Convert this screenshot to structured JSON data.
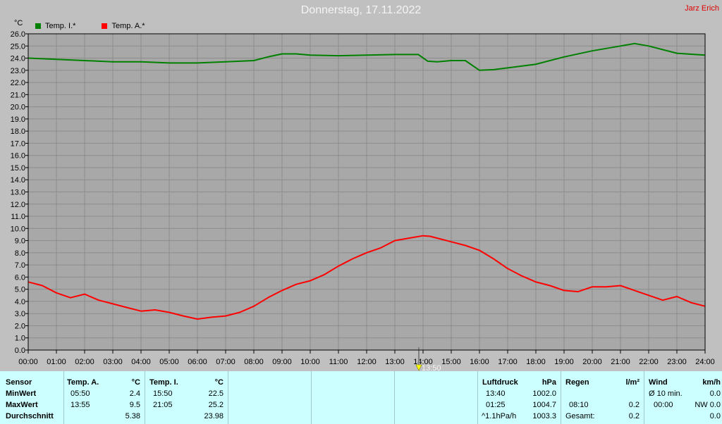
{
  "title": "Donnerstag, 17.11.2022",
  "author": "Jarz Erich",
  "cursor_label": "13:50",
  "colors": {
    "indoor": "#008000",
    "outdoor": "#ff0000",
    "title": "#f4f4f4",
    "author": "#e00000",
    "table_bg": "#ccffff"
  },
  "table": {
    "sensor": {
      "header": "Sensor",
      "rows": [
        "MinWert",
        "MaxWert",
        "Durchschnitt"
      ]
    },
    "temp_a": {
      "header": "Temp. A.",
      "unit": "°C",
      "min_time": "05:50",
      "min_val": "2.4",
      "max_time": "13:55",
      "max_val": "9.5",
      "avg": "5.38"
    },
    "temp_i": {
      "header": "Temp. I.",
      "unit": "°C",
      "min_time": "15:50",
      "min_val": "22.5",
      "max_time": "21:05",
      "max_val": "25.2",
      "avg": "23.98"
    },
    "pressure": {
      "header": "Luftdruck",
      "unit": "hPa",
      "min_time": "13:40",
      "min_val": "1002.0",
      "max_time": "01:25",
      "max_val": "1004.7",
      "trend": "^1.1hPa/h",
      "trend_val": "1003.3"
    },
    "rain": {
      "header": "Regen",
      "unit": "l/m²",
      "time": "08:10",
      "val": "0.2",
      "total_label": "Gesamt:",
      "total": "0.2"
    },
    "wind": {
      "header": "Wind",
      "unit": "km/h",
      "avg_label": "Ø 10 min.",
      "avg_val": "0.0",
      "max_time": "00:00",
      "max_val": "NW 0.0",
      "last_val": "0.0"
    }
  },
  "chart_data": {
    "type": "line",
    "title": "Donnerstag, 17.11.2022",
    "ylabel": "°C",
    "xlabel": "",
    "ylim": [
      0,
      26
    ],
    "y_ticks": [
      "0.0",
      "1.0",
      "2.0",
      "3.0",
      "4.0",
      "5.0",
      "6.0",
      "7.0",
      "8.0",
      "9.0",
      "10.0",
      "11.0",
      "12.0",
      "13.0",
      "14.0",
      "15.0",
      "16.0",
      "17.0",
      "18.0",
      "19.0",
      "20.0",
      "21.0",
      "22.0",
      "23.0",
      "24.0",
      "25.0",
      "26.0"
    ],
    "x_ticks": [
      "00:00",
      "01:00",
      "02:00",
      "03:00",
      "04:00",
      "05:00",
      "06:00",
      "07:00",
      "08:00",
      "09:00",
      "10:00",
      "11:00",
      "12:00",
      "13:00",
      "14:00",
      "15:00",
      "16:00",
      "17:00",
      "18:00",
      "19:00",
      "20:00",
      "21:00",
      "22:00",
      "23:00",
      "24:00"
    ],
    "grid": true,
    "legend": "top-left",
    "series": [
      {
        "name": "Temp. I.*",
        "x": [
          "00:00",
          "01:00",
          "02:00",
          "03:00",
          "04:00",
          "05:00",
          "06:00",
          "07:00",
          "08:00",
          "08:30",
          "09:00",
          "09:30",
          "10:00",
          "11:00",
          "12:00",
          "13:00",
          "13:50",
          "14:10",
          "14:30",
          "15:00",
          "15:30",
          "16:00",
          "16:30",
          "17:00",
          "18:00",
          "19:00",
          "20:00",
          "21:00",
          "21:30",
          "22:00",
          "23:00",
          "24:00"
        ],
        "values": [
          24.0,
          23.9,
          23.8,
          23.7,
          23.7,
          23.6,
          23.6,
          23.7,
          23.8,
          24.1,
          24.35,
          24.35,
          24.25,
          24.2,
          24.25,
          24.3,
          24.3,
          23.75,
          23.7,
          23.8,
          23.8,
          23.0,
          23.05,
          23.2,
          23.5,
          24.1,
          24.6,
          25.0,
          25.2,
          25.0,
          24.4,
          24.25
        ]
      },
      {
        "name": "Temp. A.*",
        "x": [
          "00:00",
          "00:30",
          "01:00",
          "01:30",
          "02:00",
          "02:30",
          "03:00",
          "03:30",
          "04:00",
          "04:30",
          "05:00",
          "05:30",
          "06:00",
          "06:30",
          "07:00",
          "07:30",
          "08:00",
          "08:30",
          "09:00",
          "09:30",
          "10:00",
          "10:30",
          "11:00",
          "11:30",
          "12:00",
          "12:30",
          "13:00",
          "13:30",
          "14:00",
          "14:15",
          "14:30",
          "15:00",
          "15:30",
          "16:00",
          "16:30",
          "17:00",
          "17:30",
          "18:00",
          "18:30",
          "19:00",
          "19:30",
          "20:00",
          "20:30",
          "21:00",
          "21:30",
          "22:00",
          "22:30",
          "23:00",
          "23:30",
          "24:00"
        ],
        "values": [
          5.6,
          5.3,
          4.7,
          4.3,
          4.6,
          4.1,
          3.8,
          3.5,
          3.2,
          3.3,
          3.1,
          2.8,
          2.55,
          2.7,
          2.8,
          3.1,
          3.6,
          4.3,
          4.9,
          5.4,
          5.7,
          6.2,
          6.9,
          7.5,
          8.0,
          8.4,
          9.0,
          9.2,
          9.4,
          9.35,
          9.2,
          8.9,
          8.6,
          8.2,
          7.5,
          6.7,
          6.1,
          5.6,
          5.3,
          4.9,
          4.8,
          5.2,
          5.2,
          5.3,
          4.9,
          4.5,
          4.1,
          4.4,
          3.9,
          3.6
        ]
      }
    ]
  }
}
